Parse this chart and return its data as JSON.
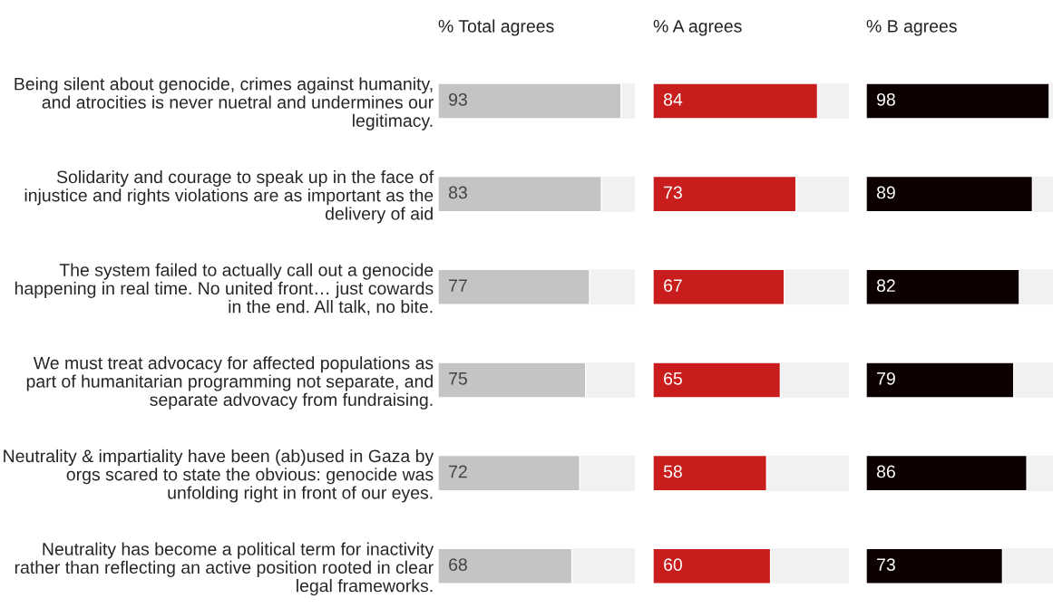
{
  "chart_data": [
    {
      "type": "bar",
      "orientation": "horizontal",
      "title": "% Total agrees",
      "categories": [
        "Being silent about genocide, crimes against humanity, and atrocities is never nuetral and undermines our legitimacy.",
        "Solidarity and courage to speak up in the face of injustice and rights violations are as important as the delivery of aid",
        "The system failed to actually call out a genocide happening in real time. No united front… just cowards in the end. All talk, no bite.",
        "We must treat advocacy for affected populations as part of humanitarian programming not separate, and separate advovacy from fundraising.",
        "Neutrality & impartiality have been (ab)used in Gaza by orgs scared to state the obvious: genocide was unfolding right in front of our eyes.",
        "Neutrality has become a political term for inactivity rather than reflecting an active position rooted in clear legal frameworks."
      ],
      "values": [
        93,
        83,
        77,
        75,
        72,
        68
      ],
      "color": "#c4c4c4",
      "xlim": [
        0,
        100
      ],
      "data_labels": true,
      "tick_labels": "y"
    },
    {
      "type": "bar",
      "orientation": "horizontal",
      "title": "% A agrees",
      "categories": [
        null,
        null,
        null,
        null,
        null,
        null
      ],
      "values": [
        84,
        73,
        67,
        65,
        58,
        60
      ],
      "color": "#c91d1d",
      "xlim": [
        0,
        100
      ],
      "data_labels": true,
      "tick_labels": false
    },
    {
      "type": "bar",
      "orientation": "horizontal",
      "title": "% B agrees",
      "categories": [
        null,
        null,
        null,
        null,
        null,
        null
      ],
      "values": [
        98,
        89,
        82,
        79,
        86,
        73
      ],
      "color": "#0c0000",
      "xlim": [
        0,
        100
      ],
      "data_labels": true,
      "tick_labels": false
    }
  ]
}
